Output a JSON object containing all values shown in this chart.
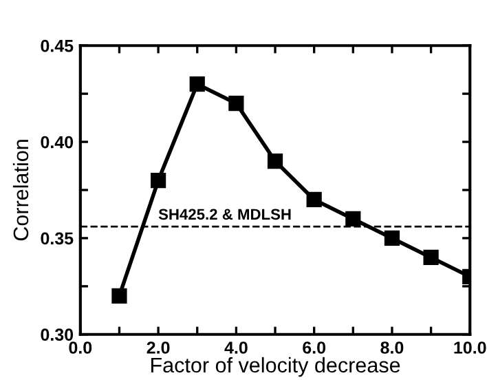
{
  "chart_data": {
    "type": "line",
    "xlabel": "Factor of velocity decrease",
    "ylabel": "Correlation",
    "x": [
      1,
      2,
      3,
      4,
      5,
      6,
      7,
      8,
      9,
      10
    ],
    "series": [
      {
        "color": "#000000",
        "values": [
          0.32,
          0.38,
          0.43,
          0.42,
          0.39,
          0.37,
          0.36,
          0.35,
          0.34,
          0.33
        ]
      }
    ],
    "marker": "square",
    "line_style": "solid",
    "grid": false,
    "legend": false,
    "xlim": [
      0.0,
      10.0
    ],
    "xticks": [
      {
        "value": 0,
        "label": "0.0"
      },
      {
        "value": 1,
        "label": null
      },
      {
        "value": 2,
        "label": "2.0"
      },
      {
        "value": 3,
        "label": null
      },
      {
        "value": 4,
        "label": "4.0"
      },
      {
        "value": 5,
        "label": null
      },
      {
        "value": 6,
        "label": "6.0"
      },
      {
        "value": 7,
        "label": null
      },
      {
        "value": 8,
        "label": "8.0"
      },
      {
        "value": 9,
        "label": null
      },
      {
        "value": 10,
        "label": "10.0"
      }
    ],
    "ylim": [
      0.3,
      0.45
    ],
    "yticks": [
      {
        "value": 0.3,
        "label": "0.30"
      },
      {
        "value": 0.325,
        "label": null
      },
      {
        "value": 0.35,
        "label": "0.35"
      },
      {
        "value": 0.375,
        "label": null
      },
      {
        "value": 0.4,
        "label": "0.40"
      },
      {
        "value": 0.425,
        "label": null
      },
      {
        "value": 0.45,
        "label": "0.45"
      }
    ],
    "ref_lines": [
      {
        "axis": "y",
        "value": 0.356,
        "label": "SH425.2 & MDLSH",
        "line_style": "dashed",
        "color": "#000000"
      }
    ]
  }
}
